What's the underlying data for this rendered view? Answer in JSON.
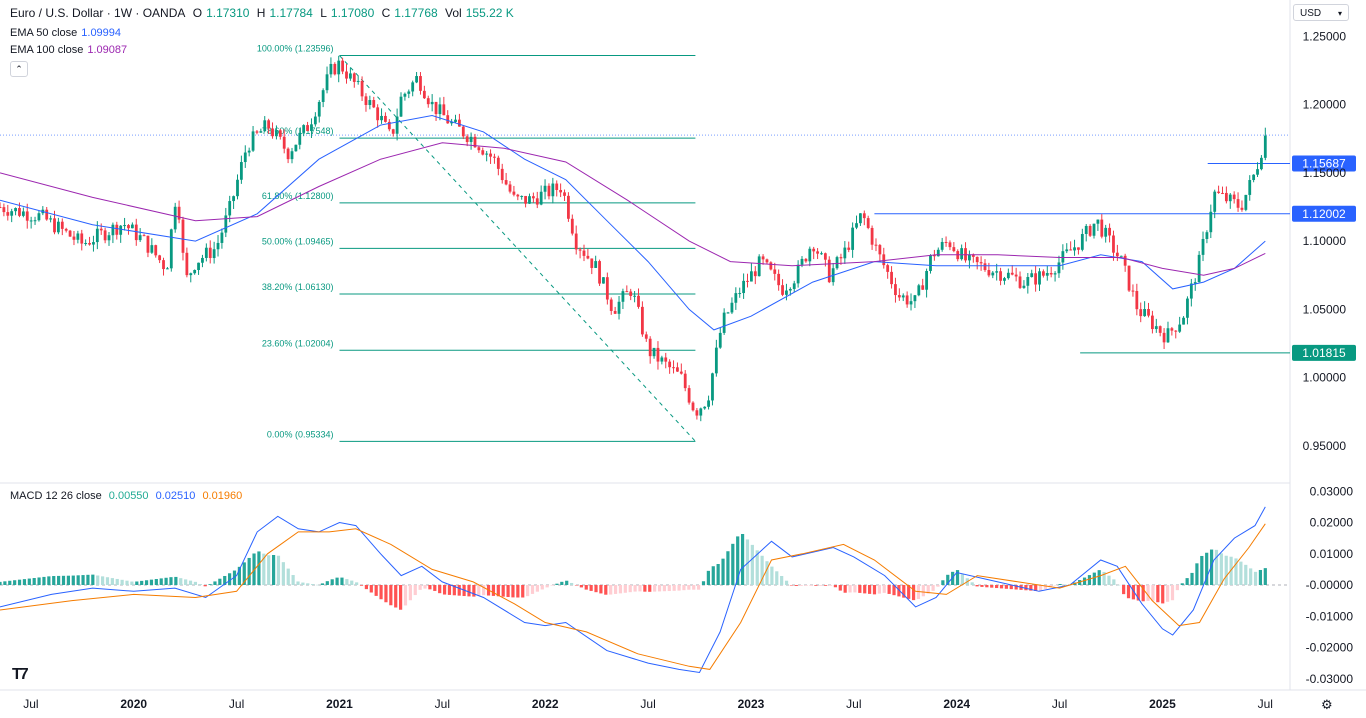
{
  "header": {
    "symbol": "Euro / U.S. Dollar · 1W · OANDA",
    "open_label": "O",
    "open": "1.17310",
    "high_label": "H",
    "high": "1.17784",
    "low_label": "L",
    "low": "1.17080",
    "close_label": "C",
    "close": "1.17768",
    "vol_label": "Vol",
    "vol": "155.22 K",
    "ema50_label": "EMA 50 close",
    "ema50": "1.09994",
    "ema100_label": "EMA 100 close",
    "ema100": "1.09087",
    "collapse_icon": "chevron-up-icon",
    "currency": "USD"
  },
  "macd": {
    "label": "MACD 12 26 close",
    "hist": "0.00550",
    "macd": "0.02510",
    "signal": "0.01960"
  },
  "colors": {
    "up": "#089981",
    "down": "#f23645",
    "ema50": "#2962ff",
    "ema100": "#9c27b0",
    "macd": "#2962ff",
    "signal": "#f57c00",
    "fib": "#089981"
  },
  "chart_data": [
    {
      "type": "candlestick",
      "title": "Euro / U.S. Dollar · 1W · OANDA",
      "ylim": [
        0.925,
        1.262
      ],
      "y_ticks": [
        "1.25000",
        "1.20000",
        "1.15000",
        "1.10000",
        "1.05000",
        "1.00000",
        "0.95000"
      ],
      "x_ticks": [
        "Jul",
        "2020",
        "Jul",
        "2021",
        "Jul",
        "2022",
        "Jul",
        "2023",
        "Jul",
        "2024",
        "Jul",
        "2025",
        "Jul"
      ],
      "x_tick_times": [
        2019.5,
        2020.0,
        2020.5,
        2021.0,
        2021.5,
        2022.0,
        2022.5,
        2023.0,
        2023.5,
        2024.0,
        2024.5,
        2025.0,
        2025.5
      ],
      "xlim": [
        2019.35,
        2025.62
      ],
      "price_path": [
        [
          2019.35,
          1.125
        ],
        [
          2019.55,
          1.118
        ],
        [
          2019.75,
          1.098
        ],
        [
          2019.95,
          1.113
        ],
        [
          2020.05,
          1.1
        ],
        [
          2020.16,
          1.08
        ],
        [
          2020.21,
          1.14
        ],
        [
          2020.25,
          1.07
        ],
        [
          2020.3,
          1.085
        ],
        [
          2020.4,
          1.095
        ],
        [
          2020.47,
          1.125
        ],
        [
          2020.55,
          1.17
        ],
        [
          2020.65,
          1.185
        ],
        [
          2020.75,
          1.165
        ],
        [
          2020.85,
          1.185
        ],
        [
          2020.96,
          1.225
        ],
        [
          2021.0,
          1.23
        ],
        [
          2021.1,
          1.21
        ],
        [
          2021.2,
          1.19
        ],
        [
          2021.25,
          1.175
        ],
        [
          2021.3,
          1.205
        ],
        [
          2021.38,
          1.22
        ],
        [
          2021.45,
          1.2
        ],
        [
          2021.55,
          1.185
        ],
        [
          2021.65,
          1.175
        ],
        [
          2021.75,
          1.16
        ],
        [
          2021.85,
          1.13
        ],
        [
          2021.92,
          1.13
        ],
        [
          2022.0,
          1.135
        ],
        [
          2022.08,
          1.14
        ],
        [
          2022.15,
          1.1
        ],
        [
          2022.25,
          1.08
        ],
        [
          2022.33,
          1.05
        ],
        [
          2022.42,
          1.065
        ],
        [
          2022.5,
          1.02
        ],
        [
          2022.58,
          1.01
        ],
        [
          2022.66,
          1.0
        ],
        [
          2022.73,
          0.975
        ],
        [
          2022.79,
          0.985
        ],
        [
          2022.86,
          1.04
        ],
        [
          2022.95,
          1.065
        ],
        [
          2023.05,
          1.085
        ],
        [
          2023.15,
          1.065
        ],
        [
          2023.22,
          1.075
        ],
        [
          2023.3,
          1.1
        ],
        [
          2023.38,
          1.075
        ],
        [
          2023.45,
          1.09
        ],
        [
          2023.54,
          1.12
        ],
        [
          2023.62,
          1.09
        ],
        [
          2023.72,
          1.06
        ],
        [
          2023.8,
          1.055
        ],
        [
          2023.88,
          1.09
        ],
        [
          2023.96,
          1.1
        ],
        [
          2024.05,
          1.085
        ],
        [
          2024.15,
          1.08
        ],
        [
          2024.25,
          1.075
        ],
        [
          2024.33,
          1.07
        ],
        [
          2024.42,
          1.075
        ],
        [
          2024.5,
          1.085
        ],
        [
          2024.6,
          1.1
        ],
        [
          2024.68,
          1.115
        ],
        [
          2024.74,
          1.1
        ],
        [
          2024.8,
          1.085
        ],
        [
          2024.88,
          1.05
        ],
        [
          2024.95,
          1.04
        ],
        [
          2025.02,
          1.03
        ],
        [
          2025.1,
          1.045
        ],
        [
          2025.18,
          1.085
        ],
        [
          2025.25,
          1.135
        ],
        [
          2025.32,
          1.13
        ],
        [
          2025.38,
          1.125
        ],
        [
          2025.45,
          1.15
        ],
        [
          2025.5,
          1.177
        ]
      ],
      "ema50_path": [
        [
          2019.35,
          1.13
        ],
        [
          2019.8,
          1.112
        ],
        [
          2020.3,
          1.1
        ],
        [
          2020.6,
          1.12
        ],
        [
          2020.9,
          1.16
        ],
        [
          2021.2,
          1.185
        ],
        [
          2021.45,
          1.192
        ],
        [
          2021.7,
          1.18
        ],
        [
          2021.9,
          1.16
        ],
        [
          2022.1,
          1.145
        ],
        [
          2022.3,
          1.115
        ],
        [
          2022.5,
          1.085
        ],
        [
          2022.7,
          1.05
        ],
        [
          2022.82,
          1.035
        ],
        [
          2023.0,
          1.045
        ],
        [
          2023.3,
          1.07
        ],
        [
          2023.6,
          1.085
        ],
        [
          2023.9,
          1.082
        ],
        [
          2024.2,
          1.082
        ],
        [
          2024.5,
          1.082
        ],
        [
          2024.7,
          1.09
        ],
        [
          2024.9,
          1.085
        ],
        [
          2025.05,
          1.065
        ],
        [
          2025.2,
          1.07
        ],
        [
          2025.35,
          1.08
        ],
        [
          2025.5,
          1.1
        ]
      ],
      "ema100_path": [
        [
          2019.35,
          1.15
        ],
        [
          2019.8,
          1.132
        ],
        [
          2020.3,
          1.115
        ],
        [
          2020.6,
          1.118
        ],
        [
          2020.9,
          1.14
        ],
        [
          2021.2,
          1.16
        ],
        [
          2021.5,
          1.172
        ],
        [
          2021.8,
          1.168
        ],
        [
          2022.1,
          1.158
        ],
        [
          2022.4,
          1.13
        ],
        [
          2022.7,
          1.1
        ],
        [
          2022.9,
          1.085
        ],
        [
          2023.2,
          1.082
        ],
        [
          2023.6,
          1.085
        ],
        [
          2023.9,
          1.09
        ],
        [
          2024.2,
          1.09
        ],
        [
          2024.5,
          1.088
        ],
        [
          2024.8,
          1.088
        ],
        [
          2025.0,
          1.08
        ],
        [
          2025.2,
          1.075
        ],
        [
          2025.35,
          1.08
        ],
        [
          2025.5,
          1.091
        ]
      ],
      "fibonacci": {
        "start": [
          2021.0,
          1.23596
        ],
        "end": [
          2022.73,
          0.95334
        ],
        "levels": [
          {
            "label": "100.00% (1.23596)",
            "value": 1.23596
          },
          {
            "label": "78.60% (1.17548)",
            "value": 1.17548
          },
          {
            "label": "61.80% (1.12800)",
            "value": 1.128
          },
          {
            "label": "50.00% (1.09465)",
            "value": 1.09465
          },
          {
            "label": "38.20% (1.06130)",
            "value": 1.0613
          },
          {
            "label": "23.60% (1.02004)",
            "value": 1.02004
          },
          {
            "label": "0.00% (0.95334)",
            "value": 0.95334
          }
        ]
      },
      "horizontal_lines": [
        {
          "label": "1.15687",
          "value": 1.15687,
          "from": 2025.22,
          "color": "#2962ff"
        },
        {
          "label": "1.12002",
          "value": 1.12002,
          "from": 2023.6,
          "color": "#2962ff"
        },
        {
          "label": "1.01815",
          "value": 1.01815,
          "from": 2024.6,
          "color": "#089981"
        }
      ],
      "current_price": 1.17768
    },
    {
      "type": "macd",
      "ylim": [
        -0.032,
        0.032
      ],
      "y_ticks": [
        "0.03000",
        "0.02000",
        "0.01000",
        "-0.00000",
        "-0.01000",
        "-0.02000",
        "-0.03000"
      ],
      "macd_path": [
        [
          2019.35,
          -0.007
        ],
        [
          2019.6,
          -0.003
        ],
        [
          2019.8,
          -0.001
        ],
        [
          2020.0,
          -0.002
        ],
        [
          2020.2,
          -0.001
        ],
        [
          2020.35,
          -0.004
        ],
        [
          2020.5,
          0.003
        ],
        [
          2020.6,
          0.017
        ],
        [
          2020.7,
          0.022
        ],
        [
          2020.8,
          0.018
        ],
        [
          2020.9,
          0.017
        ],
        [
          2021.0,
          0.02
        ],
        [
          2021.08,
          0.019
        ],
        [
          2021.2,
          0.01
        ],
        [
          2021.3,
          0.003
        ],
        [
          2021.4,
          0.006
        ],
        [
          2021.5,
          0.001
        ],
        [
          2021.7,
          -0.004
        ],
        [
          2021.9,
          -0.012
        ],
        [
          2022.0,
          -0.013
        ],
        [
          2022.1,
          -0.012
        ],
        [
          2022.3,
          -0.021
        ],
        [
          2022.5,
          -0.025
        ],
        [
          2022.65,
          -0.027
        ],
        [
          2022.75,
          -0.028
        ],
        [
          2022.85,
          -0.015
        ],
        [
          2022.95,
          0.005
        ],
        [
          2023.1,
          0.014
        ],
        [
          2023.2,
          0.009
        ],
        [
          2023.4,
          0.012
        ],
        [
          2023.5,
          0.009
        ],
        [
          2023.65,
          0.003
        ],
        [
          2023.8,
          -0.007
        ],
        [
          2023.9,
          -0.004
        ],
        [
          2024.0,
          0.004
        ],
        [
          2024.2,
          0.001
        ],
        [
          2024.4,
          -0.002
        ],
        [
          2024.55,
          0.0
        ],
        [
          2024.7,
          0.008
        ],
        [
          2024.78,
          0.006
        ],
        [
          2024.9,
          -0.006
        ],
        [
          2025.0,
          -0.014
        ],
        [
          2025.05,
          -0.016
        ],
        [
          2025.15,
          -0.008
        ],
        [
          2025.25,
          0.008
        ],
        [
          2025.35,
          0.015
        ],
        [
          2025.45,
          0.019
        ],
        [
          2025.5,
          0.025
        ]
      ],
      "signal_path": [
        [
          2019.35,
          -0.008
        ],
        [
          2019.7,
          -0.005
        ],
        [
          2020.0,
          -0.003
        ],
        [
          2020.3,
          -0.004
        ],
        [
          2020.5,
          -0.002
        ],
        [
          2020.65,
          0.01
        ],
        [
          2020.8,
          0.017
        ],
        [
          2020.95,
          0.017
        ],
        [
          2021.08,
          0.018
        ],
        [
          2021.25,
          0.013
        ],
        [
          2021.45,
          0.005
        ],
        [
          2021.65,
          0.001
        ],
        [
          2021.85,
          -0.006
        ],
        [
          2022.0,
          -0.012
        ],
        [
          2022.2,
          -0.015
        ],
        [
          2022.45,
          -0.022
        ],
        [
          2022.7,
          -0.026
        ],
        [
          2022.8,
          -0.027
        ],
        [
          2022.95,
          -0.012
        ],
        [
          2023.1,
          0.008
        ],
        [
          2023.25,
          0.01
        ],
        [
          2023.45,
          0.013
        ],
        [
          2023.6,
          0.008
        ],
        [
          2023.8,
          -0.002
        ],
        [
          2023.95,
          -0.003
        ],
        [
          2024.1,
          0.003
        ],
        [
          2024.3,
          0.001
        ],
        [
          2024.5,
          -0.001
        ],
        [
          2024.7,
          0.003
        ],
        [
          2024.82,
          0.006
        ],
        [
          2024.95,
          -0.005
        ],
        [
          2025.08,
          -0.013
        ],
        [
          2025.18,
          -0.012
        ],
        [
          2025.3,
          0.002
        ],
        [
          2025.42,
          0.012
        ],
        [
          2025.5,
          0.0196
        ]
      ]
    }
  ]
}
